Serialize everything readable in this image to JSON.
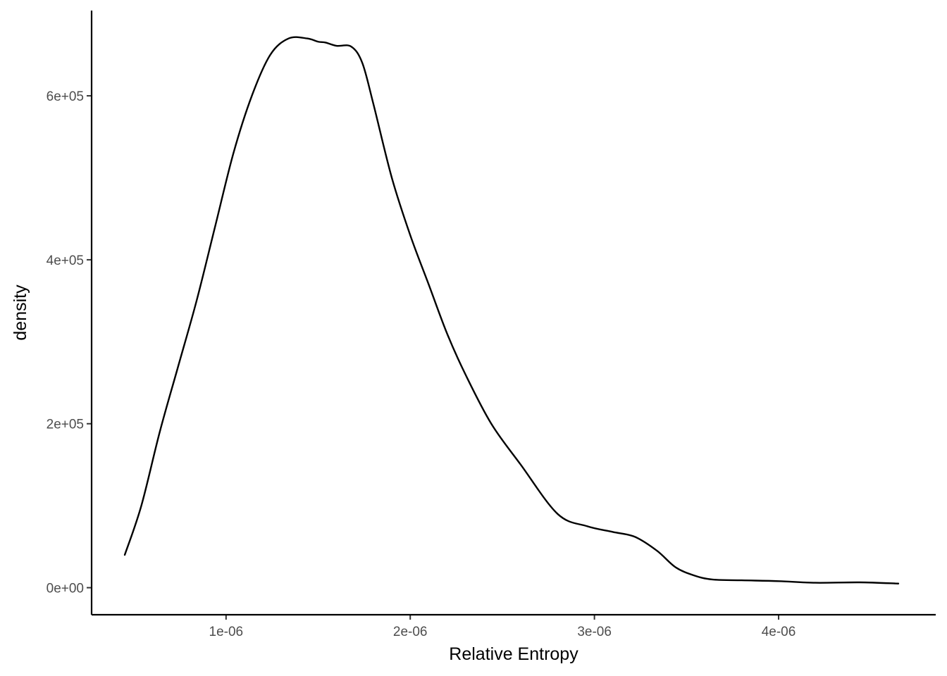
{
  "chart_data": {
    "type": "line",
    "title": "",
    "xlabel": "Relative Entropy",
    "ylabel": "density",
    "xlim": [
      2.7e-07,
      4.853e-06
    ],
    "ylim": [
      -33000,
      704000
    ],
    "x_ticks": [
      {
        "value": 1e-06,
        "label": "1e-06"
      },
      {
        "value": 2e-06,
        "label": "2e-06"
      },
      {
        "value": 3e-06,
        "label": "3e-06"
      },
      {
        "value": 4e-06,
        "label": "4e-06"
      }
    ],
    "y_ticks": [
      {
        "value": 0,
        "label": "0e+00"
      },
      {
        "value": 200000,
        "label": "2e+05"
      },
      {
        "value": 400000,
        "label": "4e+05"
      },
      {
        "value": 600000,
        "label": "6e+05"
      }
    ],
    "grid": false,
    "legend": "none",
    "line_color": "#000000",
    "series": [
      {
        "x": [
          4.5e-07,
          5.4e-07,
          6.4e-07,
          7.4e-07,
          8.4e-07,
          9.4e-07,
          1.04e-06,
          1.14e-06,
          1.24e-06,
          1.34e-06,
          1.44e-06,
          1.5e-06,
          1.54e-06,
          1.6e-06,
          1.68e-06,
          1.74e-06,
          1.8e-06,
          1.9e-06,
          2e-06,
          2.1e-06,
          2.2e-06,
          2.3e-06,
          2.44e-06,
          2.6e-06,
          2.8e-06,
          2.96e-06,
          3.1e-06,
          3.22e-06,
          3.34e-06,
          3.44e-06,
          3.54e-06,
          3.64e-06,
          3.8e-06,
          4e-06,
          4.2e-06,
          4.44e-06,
          4.65e-06
        ],
        "y": [
          40000,
          100000,
          190000,
          270000,
          350000,
          440000,
          530000,
          600000,
          650000,
          670000,
          670000,
          666000,
          665000,
          661000,
          660000,
          640000,
          590000,
          500000,
          430000,
          370000,
          310000,
          260000,
          200000,
          150000,
          90000,
          75000,
          68000,
          62000,
          45000,
          25000,
          15000,
          10000,
          9000,
          8000,
          6000,
          6500,
          5000
        ]
      }
    ]
  }
}
